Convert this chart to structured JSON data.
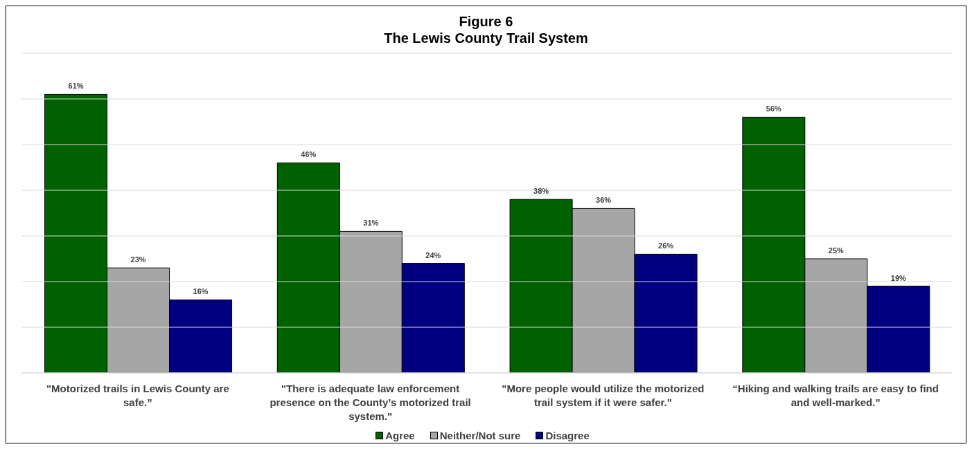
{
  "chart_data": {
    "type": "bar",
    "title": "Figure 6",
    "subtitle": "The Lewis County Trail System",
    "categories": [
      "\"Motorized trails in Lewis County are safe.”",
      "\"There is adequate law enforcement presence on the County’s motorized trail system.\"",
      "\"More people would utilize the motorized trail system if it were safer.\"",
      "“Hiking and walking trails are easy to find and well-marked.\""
    ],
    "series": [
      {
        "name": "Agree",
        "color": "#006100",
        "values": [
          61,
          46,
          38,
          56
        ],
        "value_labels": [
          "61%",
          "46%",
          "38%",
          "56%"
        ]
      },
      {
        "name": "Neither/Not sure",
        "color": "#a6a6a6",
        "values": [
          23,
          31,
          36,
          25
        ],
        "value_labels": [
          "23%",
          "31%",
          "36%",
          "25%"
        ]
      },
      {
        "name": "Disagree",
        "color": "#000080",
        "values": [
          16,
          24,
          26,
          19
        ],
        "value_labels": [
          "16%",
          "24%",
          "26%",
          "19%"
        ]
      }
    ],
    "ylim": [
      0,
      70
    ],
    "yticks": [
      {
        "value": 0,
        "label": null
      },
      {
        "value": 10,
        "label": null
      },
      {
        "value": 20,
        "label": null
      },
      {
        "value": 30,
        "label": null
      },
      {
        "value": 40,
        "label": null
      },
      {
        "value": 50,
        "label": null
      },
      {
        "value": 60,
        "label": null
      },
      {
        "value": 70,
        "label": null
      }
    ],
    "tick_labels": "x",
    "grid": "y",
    "legend": "bottom"
  }
}
